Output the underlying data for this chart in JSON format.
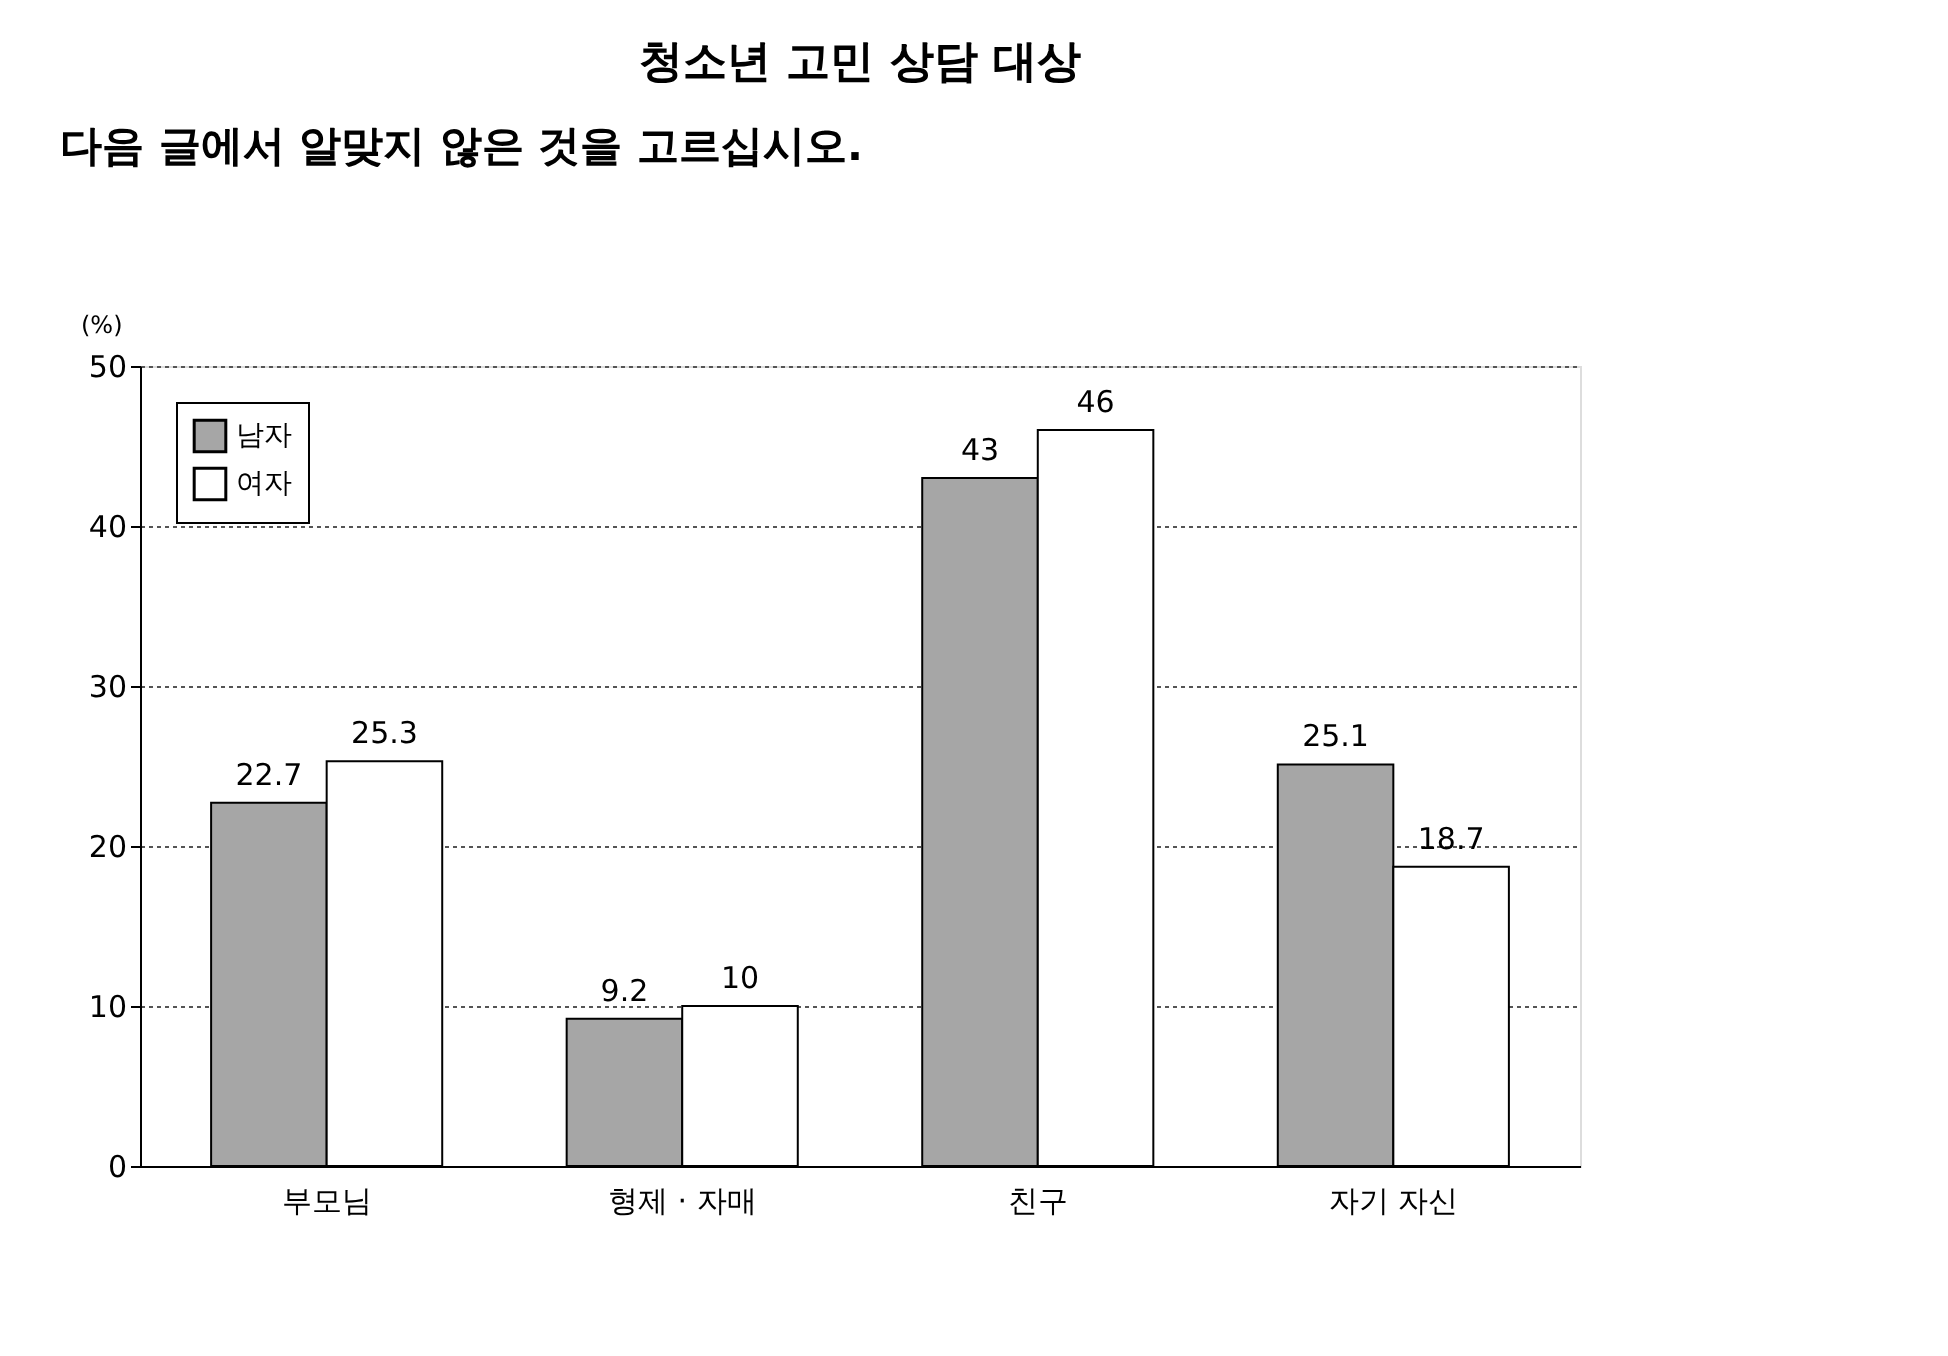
{
  "chart_data": {
    "type": "bar",
    "title": "청소년 고민 상담 대상",
    "annotations": [
      "다음 글에서 알맞지 않은 것을 고르십시오."
    ],
    "ylabel": "(%)",
    "categories": [
      "부모님",
      "형제 · 자매",
      "친구",
      "자기 자신"
    ],
    "series": [
      {
        "name": "남자",
        "color": "#a6a6a6",
        "values": [
          22.7,
          9.2,
          43,
          25.1
        ]
      },
      {
        "name": "여자",
        "color": "#ffffff",
        "values": [
          25.3,
          10,
          46,
          18.7
        ]
      }
    ],
    "ylim": [
      0,
      50
    ],
    "yticks": [
      0,
      10,
      20,
      30,
      40,
      50
    ],
    "grid": "y",
    "legend": "top left",
    "data_labels": true
  }
}
